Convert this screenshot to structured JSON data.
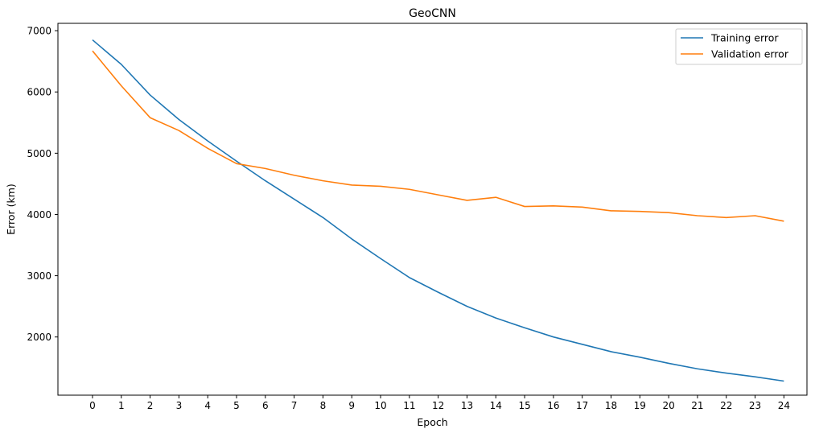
{
  "chart_data": {
    "type": "line",
    "title": "GeoCNN",
    "xlabel": "Epoch",
    "ylabel": "Error (km)",
    "x": [
      0,
      1,
      2,
      3,
      4,
      5,
      6,
      7,
      8,
      9,
      10,
      11,
      12,
      13,
      14,
      15,
      16,
      17,
      18,
      19,
      20,
      21,
      22,
      23,
      24
    ],
    "xticks": [
      0,
      1,
      2,
      3,
      4,
      5,
      6,
      7,
      8,
      9,
      10,
      11,
      12,
      13,
      14,
      15,
      16,
      17,
      18,
      19,
      20,
      21,
      22,
      23,
      24
    ],
    "yticks": [
      2000,
      3000,
      4000,
      5000,
      6000,
      7000
    ],
    "xlim": [
      -1.2,
      24.8
    ],
    "ylim": [
      1050,
      7120
    ],
    "grid": false,
    "legend_position": "top-right",
    "series": [
      {
        "name": "Training error",
        "color": "#1f77b4",
        "values": [
          6850,
          6450,
          5950,
          5550,
          5200,
          4870,
          4550,
          4250,
          3950,
          3600,
          3280,
          2970,
          2730,
          2500,
          2310,
          2150,
          2000,
          1880,
          1760,
          1670,
          1570,
          1480,
          1410,
          1350,
          1280
        ]
      },
      {
        "name": "Validation error",
        "color": "#ff7f0e",
        "values": [
          6670,
          6100,
          5580,
          5370,
          5080,
          4830,
          4750,
          4640,
          4550,
          4480,
          4460,
          4410,
          4320,
          4230,
          4280,
          4130,
          4140,
          4120,
          4060,
          4050,
          4030,
          3980,
          3950,
          3980,
          3890
        ]
      }
    ]
  }
}
